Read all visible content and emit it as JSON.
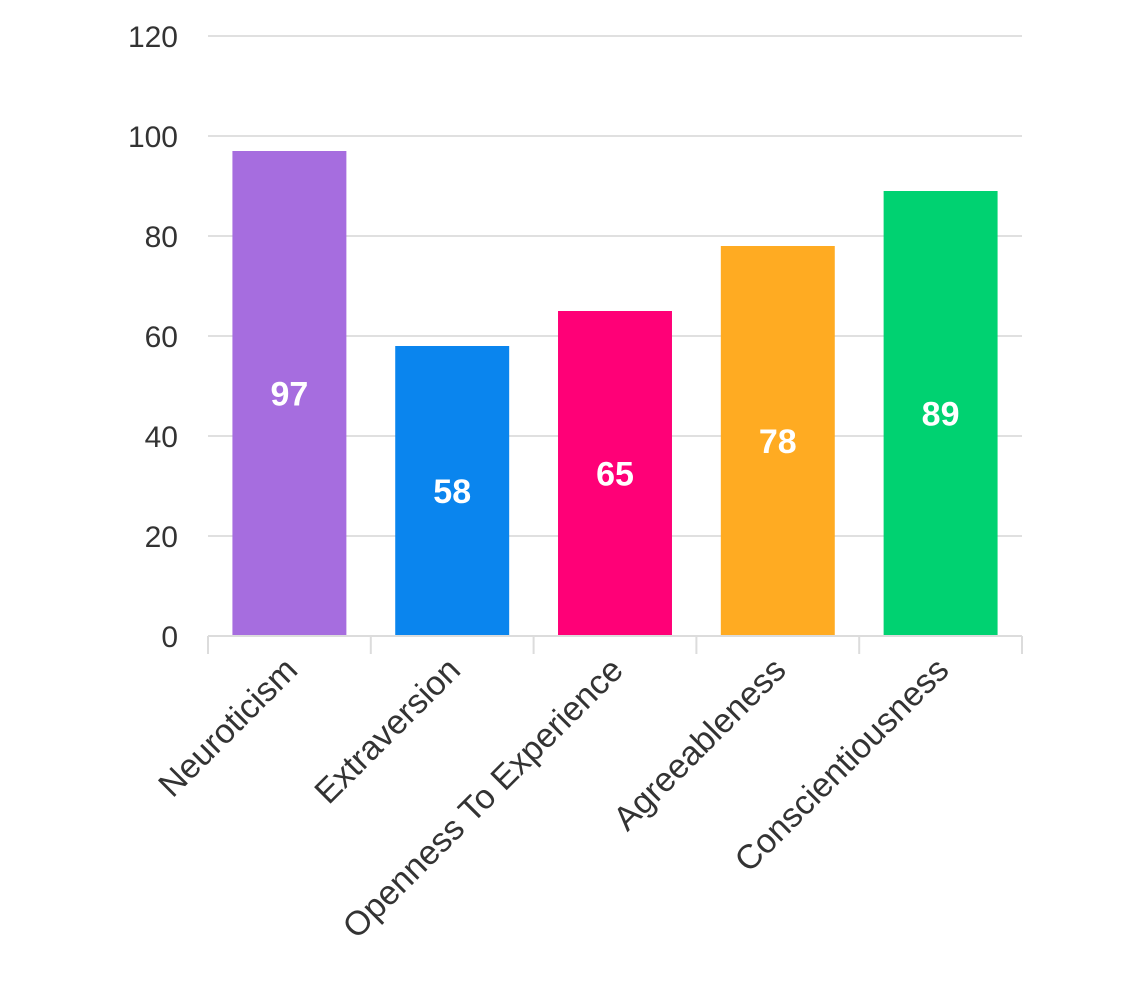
{
  "chart_data": {
    "type": "bar",
    "title": "",
    "xlabel": "",
    "ylabel": "",
    "categories": [
      "Neuroticism",
      "Extraversion",
      "Openness To Experience",
      "Agreeableness",
      "Conscientiousness"
    ],
    "values": [
      97,
      58,
      65,
      78,
      89
    ],
    "data_labels": [
      "97",
      "58",
      "65",
      "78",
      "89"
    ],
    "colors": [
      "#a66ddf",
      "#0a85ee",
      "#ff0077",
      "#ffab22",
      "#00d271"
    ],
    "ylim": [
      0,
      120
    ],
    "yticks": [
      0,
      20,
      40,
      60,
      80,
      100,
      120
    ],
    "ytick_labels": [
      "0",
      "20",
      "40",
      "60",
      "80",
      "100",
      "120"
    ],
    "grid": true,
    "legend": "none"
  }
}
